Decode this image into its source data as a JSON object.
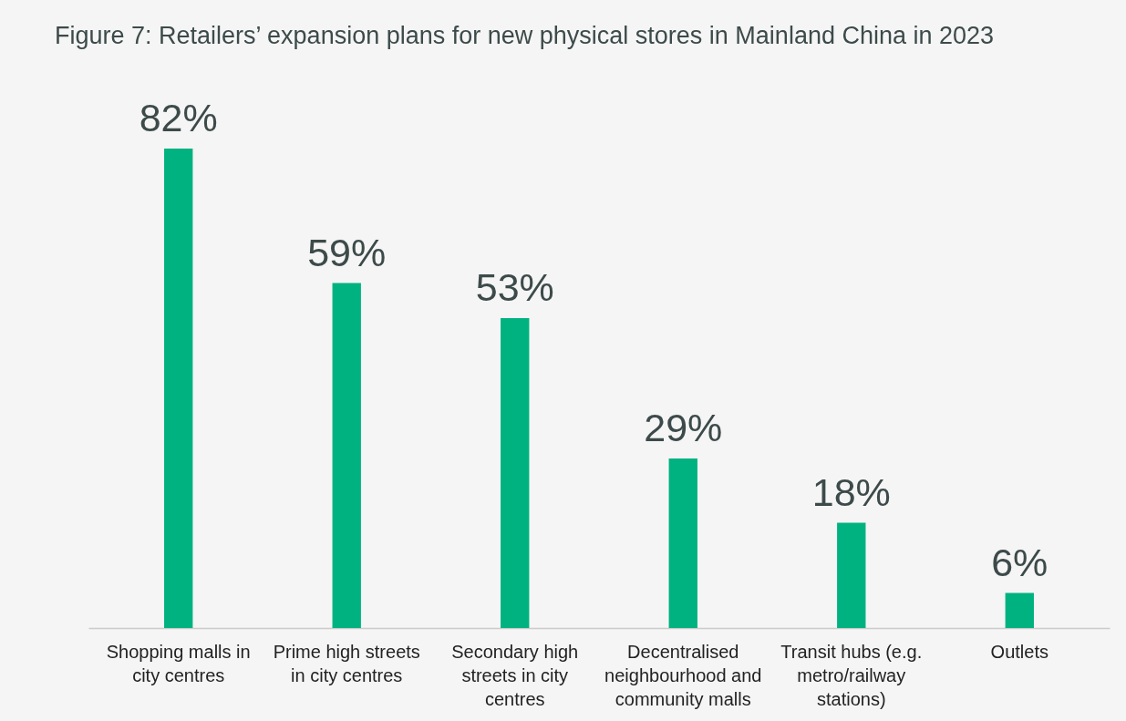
{
  "chart_data": {
    "type": "bar",
    "title": "Figure 7: Retailers’ expansion plans for new physical stores in Mainland China in 2023",
    "categories": [
      "Shopping malls in city centres",
      "Prime high streets in city centres",
      "Secondary high streets in city centres",
      "Decentralised neighbourhood and community malls",
      "Transit hubs (e.g. metro/railway stations)",
      "Outlets"
    ],
    "values": [
      82,
      59,
      53,
      29,
      18,
      6
    ],
    "value_labels": [
      "82%",
      "59%",
      "53%",
      "29%",
      "18%",
      "6%"
    ],
    "color": "#00b27f"
  }
}
